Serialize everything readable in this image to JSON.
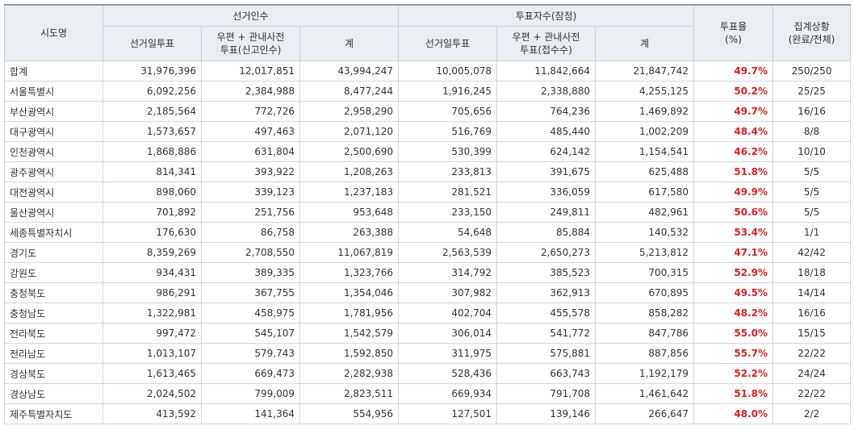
{
  "header": {
    "region": "시도명",
    "groups": [
      {
        "label": "선거인수",
        "columns": [
          "선거일투표",
          "우편 + 관내사전\n투표(신고인수)",
          "계"
        ]
      },
      {
        "label": "투표자수(잠정)",
        "columns": [
          "선거일투표",
          "우편 + 관내사전\n투표(접수수)",
          "계"
        ]
      }
    ],
    "rate": "투표율\n(%)",
    "status": "집계상황\n(완료/전체)"
  },
  "rows": [
    [
      "합계",
      "31,976,396",
      "12,017,851",
      "43,994,247",
      "10,005,078",
      "11,842,664",
      "21,847,742",
      "49.7%",
      "250/250"
    ],
    [
      "서울특별시",
      "6,092,256",
      "2,384,988",
      "8,477,244",
      "1,916,245",
      "2,338,880",
      "4,255,125",
      "50.2%",
      "25/25"
    ],
    [
      "부산광역시",
      "2,185,564",
      "772,726",
      "2,958,290",
      "705,656",
      "764,236",
      "1,469,892",
      "49.7%",
      "16/16"
    ],
    [
      "대구광역시",
      "1,573,657",
      "497,463",
      "2,071,120",
      "516,769",
      "485,440",
      "1,002,209",
      "48.4%",
      "8/8"
    ],
    [
      "인천광역시",
      "1,868,886",
      "631,804",
      "2,500,690",
      "530,399",
      "624,142",
      "1,154,541",
      "46.2%",
      "10/10"
    ],
    [
      "광주광역시",
      "814,341",
      "393,922",
      "1,208,263",
      "233,813",
      "391,675",
      "625,488",
      "51.8%",
      "5/5"
    ],
    [
      "대전광역시",
      "898,060",
      "339,123",
      "1,237,183",
      "281,521",
      "336,059",
      "617,580",
      "49.9%",
      "5/5"
    ],
    [
      "울산광역시",
      "701,892",
      "251,756",
      "953,648",
      "233,150",
      "249,811",
      "482,961",
      "50.6%",
      "5/5"
    ],
    [
      "세종특별자치시",
      "176,630",
      "86,758",
      "263,388",
      "54,648",
      "85,884",
      "140,532",
      "53.4%",
      "1/1"
    ],
    [
      "경기도",
      "8,359,269",
      "2,708,550",
      "11,067,819",
      "2,563,539",
      "2,650,273",
      "5,213,812",
      "47.1%",
      "42/42"
    ],
    [
      "강원도",
      "934,431",
      "389,335",
      "1,323,766",
      "314,792",
      "385,523",
      "700,315",
      "52.9%",
      "18/18"
    ],
    [
      "충청북도",
      "986,291",
      "367,755",
      "1,354,046",
      "307,982",
      "362,913",
      "670,895",
      "49.5%",
      "14/14"
    ],
    [
      "충청남도",
      "1,322,981",
      "458,975",
      "1,781,956",
      "402,704",
      "455,578",
      "858,282",
      "48.2%",
      "16/16"
    ],
    [
      "전라북도",
      "997,472",
      "545,107",
      "1,542,579",
      "306,014",
      "541,772",
      "847,786",
      "55.0%",
      "15/15"
    ],
    [
      "전라남도",
      "1,013,107",
      "579,743",
      "1,592,850",
      "311,975",
      "575,881",
      "887,856",
      "55.7%",
      "22/22"
    ],
    [
      "경상북도",
      "1,613,465",
      "669,473",
      "2,282,938",
      "528,436",
      "663,743",
      "1,192,179",
      "52.2%",
      "24/24"
    ],
    [
      "경상남도",
      "2,024,502",
      "799,009",
      "2,823,511",
      "669,934",
      "791,708",
      "1,461,642",
      "51.8%",
      "22/22"
    ],
    [
      "제주특별자치도",
      "413,592",
      "141,364",
      "554,956",
      "127,501",
      "139,146",
      "266,647",
      "48.0%",
      "2/2"
    ]
  ]
}
